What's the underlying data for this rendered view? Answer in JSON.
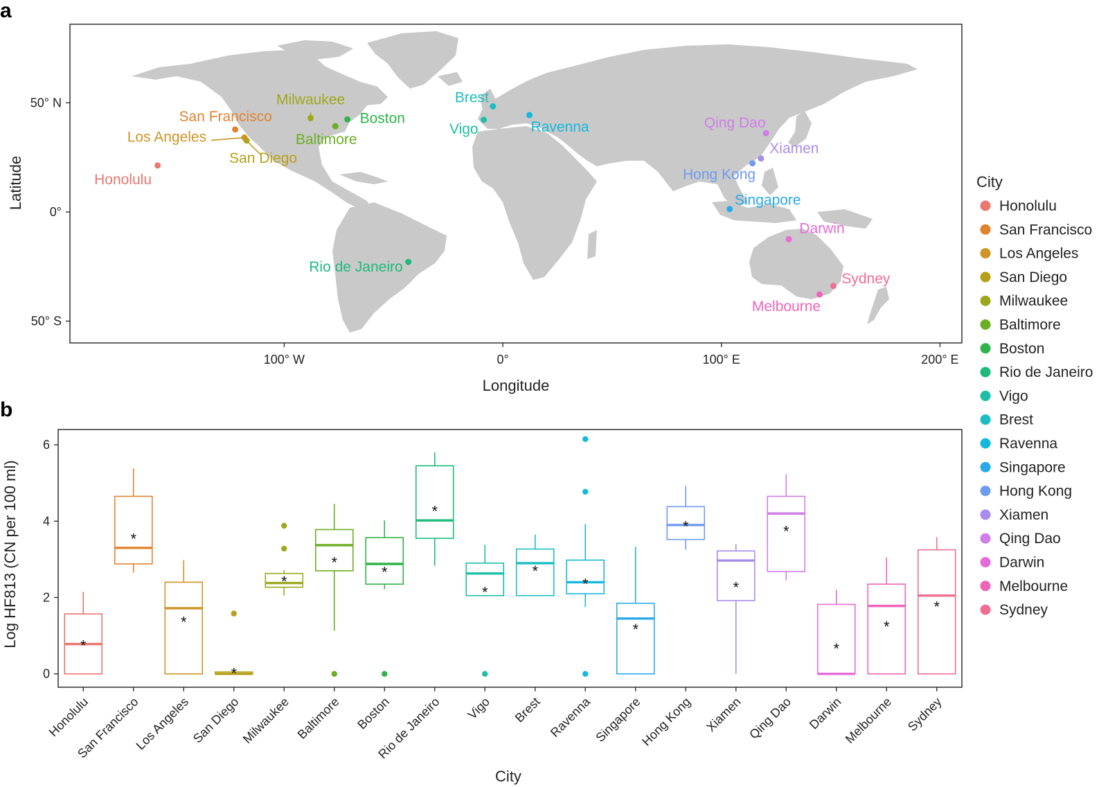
{
  "panels": {
    "a": "a",
    "b": "b"
  },
  "legend": {
    "title": "City"
  },
  "cities": [
    {
      "name": "Honolulu",
      "color": "#E9766F"
    },
    {
      "name": "San Francisco",
      "color": "#E0832F"
    },
    {
      "name": "Los Angeles",
      "color": "#CE9426"
    },
    {
      "name": "San Diego",
      "color": "#B7A019"
    },
    {
      "name": "Milwaukee",
      "color": "#9CA81C"
    },
    {
      "name": "Baltimore",
      "color": "#6BAD24"
    },
    {
      "name": "Boston",
      "color": "#2FB34A"
    },
    {
      "name": "Rio de Janeiro",
      "color": "#1FBA7B"
    },
    {
      "name": "Vigo",
      "color": "#1CBFA6"
    },
    {
      "name": "Brest",
      "color": "#1CBDC4"
    },
    {
      "name": "Ravenna",
      "color": "#16B8DD"
    },
    {
      "name": "Singapore",
      "color": "#2AA9E8"
    },
    {
      "name": "Hong Kong",
      "color": "#6E9BEE"
    },
    {
      "name": "Xiamen",
      "color": "#A98BEC"
    },
    {
      "name": "Qing Dao",
      "color": "#CF7DE8"
    },
    {
      "name": "Darwin",
      "color": "#E46BD8"
    },
    {
      "name": "Melbourne",
      "color": "#EE65B8"
    },
    {
      "name": "Sydney",
      "color": "#F06D93"
    }
  ],
  "chart_data": [
    {
      "type": "scatter",
      "panel": "a",
      "title": "",
      "xlabel": "Longitude",
      "ylabel": "Latitude",
      "xlim": [
        -198,
        210
      ],
      "ylim": [
        -60,
        86
      ],
      "xticks": [
        {
          "value": -100,
          "label": "100° W"
        },
        {
          "value": 0,
          "label": "0°"
        },
        {
          "value": 100,
          "label": "100° E"
        },
        {
          "value": 200,
          "label": "200° E"
        }
      ],
      "yticks": [
        {
          "value": 50,
          "label": "50° N"
        },
        {
          "value": 0,
          "label": "0°"
        },
        {
          "value": -50,
          "label": "50° S"
        }
      ],
      "points": [
        {
          "city": "Honolulu",
          "lon": -157.9,
          "lat": 21.3
        },
        {
          "city": "San Francisco",
          "lon": -122.4,
          "lat": 37.8
        },
        {
          "city": "Los Angeles",
          "lon": -118.2,
          "lat": 34.1
        },
        {
          "city": "San Diego",
          "lon": -117.2,
          "lat": 32.7
        },
        {
          "city": "Milwaukee",
          "lon": -87.9,
          "lat": 43.0
        },
        {
          "city": "Baltimore",
          "lon": -76.6,
          "lat": 39.3
        },
        {
          "city": "Boston",
          "lon": -71.1,
          "lat": 42.4
        },
        {
          "city": "Rio de Janeiro",
          "lon": -43.2,
          "lat": -22.9
        },
        {
          "city": "Vigo",
          "lon": -8.7,
          "lat": 42.2
        },
        {
          "city": "Brest",
          "lon": -4.5,
          "lat": 48.4
        },
        {
          "city": "Ravenna",
          "lon": 12.2,
          "lat": 44.4
        },
        {
          "city": "Singapore",
          "lon": 103.8,
          "lat": 1.35
        },
        {
          "city": "Hong Kong",
          "lon": 114.2,
          "lat": 22.3
        },
        {
          "city": "Xiamen",
          "lon": 118.1,
          "lat": 24.5
        },
        {
          "city": "Qing Dao",
          "lon": 120.4,
          "lat": 36.1
        },
        {
          "city": "Darwin",
          "lon": 130.8,
          "lat": -12.5
        },
        {
          "city": "Melbourne",
          "lon": 144.9,
          "lat": -37.8
        },
        {
          "city": "Sydney",
          "lon": 151.2,
          "lat": -33.9
        }
      ]
    },
    {
      "type": "box",
      "panel": "b",
      "title": "",
      "xlabel": "City",
      "ylabel": "Log HF813 (CN per 100 ml)",
      "ylim": [
        -0.35,
        6.4
      ],
      "yticks": [
        0,
        2,
        4,
        6
      ],
      "categories": [
        "Honolulu",
        "San Francisco",
        "Los Angeles",
        "San Diego",
        "Milwaukee",
        "Baltimore",
        "Boston",
        "Rio de Janeiro",
        "Vigo",
        "Brest",
        "Ravenna",
        "Singapore",
        "Hong Kong",
        "Xiamen",
        "Qing Dao",
        "Darwin",
        "Melbourne",
        "Sydney"
      ],
      "boxes": [
        {
          "city": "Honolulu",
          "whisker_low": 0,
          "q1": 0,
          "median": 0.78,
          "q3": 1.57,
          "whisker_high": 2.15,
          "mean": 0.8,
          "outliers": []
        },
        {
          "city": "San Francisco",
          "whisker_low": 2.65,
          "q1": 2.88,
          "median": 3.3,
          "q3": 4.65,
          "whisker_high": 5.38,
          "mean": 3.6,
          "outliers": []
        },
        {
          "city": "Los Angeles",
          "whisker_low": 0,
          "q1": 0,
          "median": 1.72,
          "q3": 2.4,
          "whisker_high": 2.98,
          "mean": 1.42,
          "outliers": []
        },
        {
          "city": "San Diego",
          "whisker_low": 0,
          "q1": 0,
          "median": 0,
          "q3": 0.05,
          "whisker_high": 0.05,
          "mean": 0.08,
          "outliers": [
            1.58
          ]
        },
        {
          "city": "Milwaukee",
          "whisker_low": 2.05,
          "q1": 2.27,
          "median": 2.38,
          "q3": 2.63,
          "whisker_high": 2.72,
          "mean": 2.48,
          "outliers": [
            3.28,
            3.88
          ]
        },
        {
          "city": "Baltimore",
          "whisker_low": 1.13,
          "q1": 2.7,
          "median": 3.37,
          "q3": 3.78,
          "whisker_high": 4.45,
          "mean": 2.98,
          "outliers": [
            0
          ]
        },
        {
          "city": "Boston",
          "whisker_low": 2.22,
          "q1": 2.35,
          "median": 2.88,
          "q3": 3.57,
          "whisker_high": 4.02,
          "mean": 2.73,
          "outliers": [
            0
          ]
        },
        {
          "city": "Rio de Janeiro",
          "whisker_low": 2.83,
          "q1": 3.55,
          "median": 4.02,
          "q3": 5.45,
          "whisker_high": 5.8,
          "mean": 4.32,
          "outliers": []
        },
        {
          "city": "Vigo",
          "whisker_low": 2.05,
          "q1": 2.05,
          "median": 2.63,
          "q3": 2.9,
          "whisker_high": 3.38,
          "mean": 2.2,
          "outliers": [
            0
          ]
        },
        {
          "city": "Brest",
          "whisker_low": 2.05,
          "q1": 2.05,
          "median": 2.9,
          "q3": 3.27,
          "whisker_high": 3.65,
          "mean": 2.75,
          "outliers": []
        },
        {
          "city": "Ravenna",
          "whisker_low": 1.75,
          "q1": 2.1,
          "median": 2.4,
          "q3": 2.98,
          "whisker_high": 3.92,
          "mean": 2.42,
          "outliers": [
            0,
            4.77,
            6.15
          ]
        },
        {
          "city": "Singapore",
          "whisker_low": 0,
          "q1": 0,
          "median": 1.45,
          "q3": 1.85,
          "whisker_high": 3.33,
          "mean": 1.23,
          "outliers": []
        },
        {
          "city": "Hong Kong",
          "whisker_low": 3.25,
          "q1": 3.52,
          "median": 3.9,
          "q3": 4.38,
          "whisker_high": 4.92,
          "mean": 3.92,
          "outliers": []
        },
        {
          "city": "Xiamen",
          "whisker_low": 0,
          "q1": 1.92,
          "median": 2.97,
          "q3": 3.22,
          "whisker_high": 3.4,
          "mean": 2.33,
          "outliers": []
        },
        {
          "city": "Qing Dao",
          "whisker_low": 2.45,
          "q1": 2.68,
          "median": 4.2,
          "q3": 4.65,
          "whisker_high": 5.23,
          "mean": 3.8,
          "outliers": []
        },
        {
          "city": "Darwin",
          "whisker_low": 0,
          "q1": 0,
          "median": 0,
          "q3": 1.82,
          "whisker_high": 2.2,
          "mean": 0.72,
          "outliers": []
        },
        {
          "city": "Melbourne",
          "whisker_low": 0,
          "q1": 0,
          "median": 1.78,
          "q3": 2.35,
          "whisker_high": 3.05,
          "mean": 1.3,
          "outliers": []
        },
        {
          "city": "Sydney",
          "whisker_low": 0,
          "q1": 0,
          "median": 2.05,
          "q3": 3.25,
          "whisker_high": 3.58,
          "mean": 1.82,
          "outliers": []
        }
      ],
      "mean_marker": "*"
    }
  ]
}
